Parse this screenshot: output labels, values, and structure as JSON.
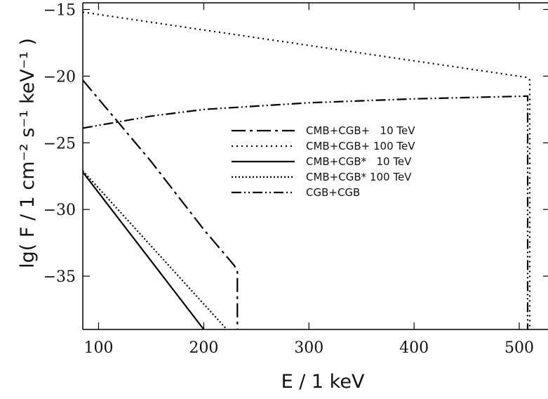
{
  "chart_data": {
    "type": "line",
    "xlabel": "E / 1 keV",
    "ylabel": "lg( F / 1 cm⁻² s⁻¹ keV⁻¹ )",
    "xlim": [
      85,
      540
    ],
    "ylim": [
      -39,
      -14.5
    ],
    "xticks": [
      100,
      200,
      300,
      400,
      500
    ],
    "yticks": [
      -15,
      -20,
      -25,
      -30,
      -35
    ],
    "legend_position": "center",
    "series": [
      {
        "name": "CMB+CGB+   10 TeV",
        "dash": "20,6,4,6",
        "x": [
          85,
          150,
          200,
          229,
          232,
          232
        ],
        "y": [
          -20.3,
          -26.4,
          -31.5,
          -34.2,
          -34.6,
          -39
        ]
      },
      {
        "name": "CMB+CGB+ 100 TeV",
        "dash": "2,5",
        "x": [
          85,
          300,
          508,
          510,
          510
        ],
        "y": [
          -15.2,
          -17.7,
          -20.1,
          -20.3,
          -39
        ]
      },
      {
        "name": "CMB+CGB*   10 TeV",
        "dash": "",
        "x": [
          85,
          200
        ],
        "y": [
          -27.2,
          -39
        ]
      },
      {
        "name": "CMB+CGB* 100 TeV",
        "dash": "2,3",
        "x": [
          85,
          222
        ],
        "y": [
          -27.1,
          -39
        ]
      },
      {
        "name": "CGB+CGB",
        "dash": "14,4,2,4,2,4",
        "x": [
          85,
          150,
          200,
          300,
          400,
          505,
          508,
          508
        ],
        "y": [
          -23.9,
          -23.0,
          -22.5,
          -22.0,
          -21.7,
          -21.5,
          -21.5,
          -39
        ]
      }
    ]
  }
}
